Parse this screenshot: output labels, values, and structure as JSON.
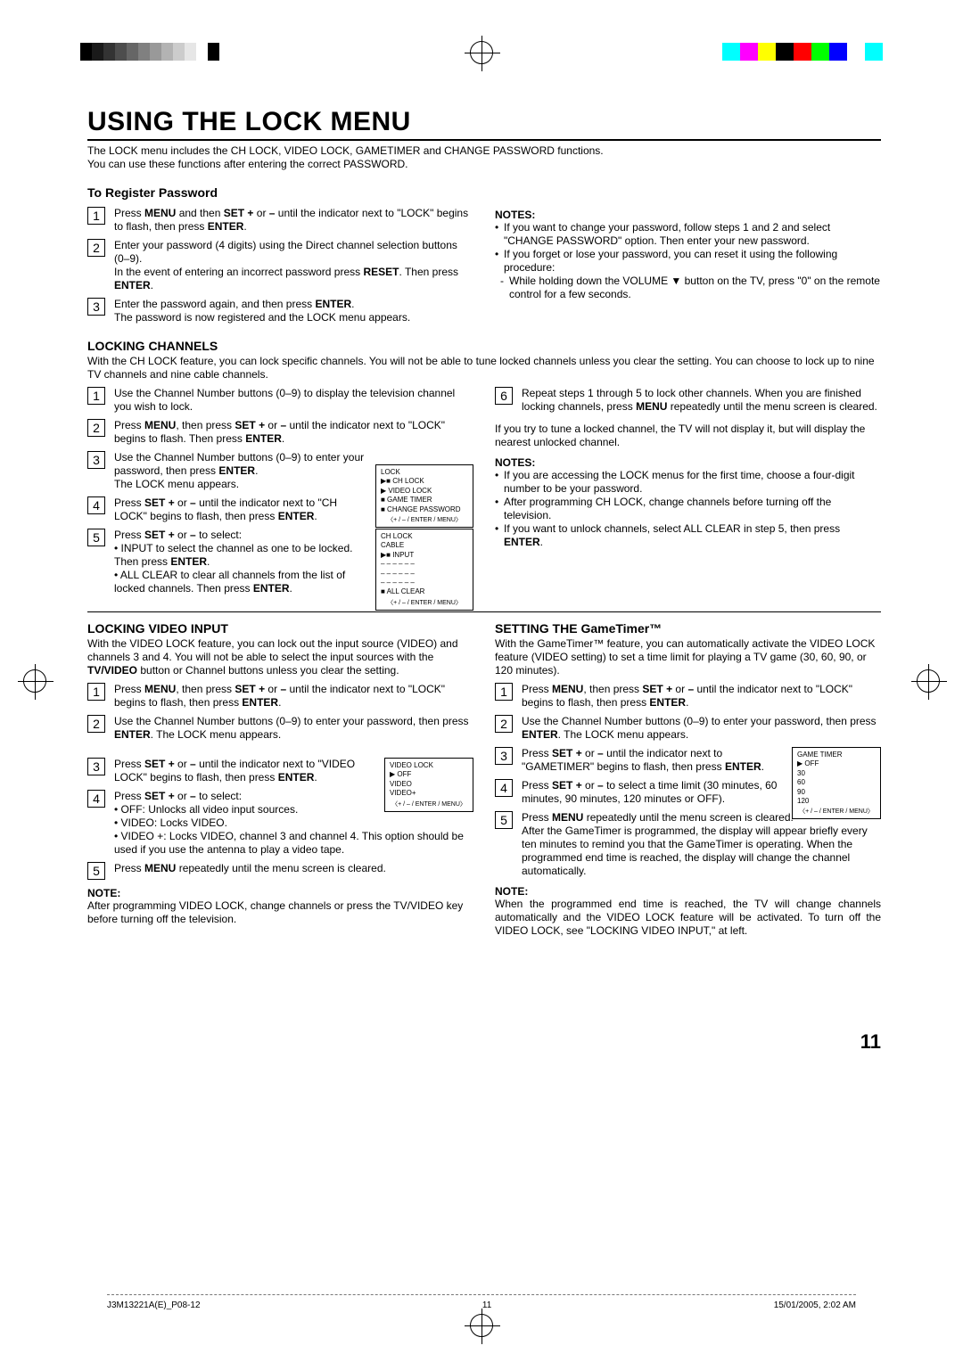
{
  "crop_colors": {
    "grays": [
      "#000000",
      "#1a1a1a",
      "#333333",
      "#4d4d4d",
      "#666666",
      "#808080",
      "#999999",
      "#b3b3b3",
      "#cccccc",
      "#e6e6e6",
      "#ffffff",
      "#000000"
    ],
    "colors": [
      "#00ffff",
      "#ff00ff",
      "#ffff00",
      "#000000",
      "#ff0000",
      "#00ff00",
      "#0000ff",
      "#ffffff",
      "#00ffff"
    ]
  },
  "title": "USING THE LOCK MENU",
  "intro1": "The LOCK menu includes the CH LOCK, VIDEO LOCK, GAMETIMER and CHANGE PASSWORD functions.",
  "intro2": "You can use these functions after entering the correct PASSWORD.",
  "register": {
    "head": "To Register Password",
    "s1a": "Press ",
    "s1b": "MENU",
    "s1c": " and then ",
    "s1d": "SET +",
    "s1e": " or ",
    "s1f": "–",
    "s1g": " until the indicator next to \"LOCK\" begins to flash, then press ",
    "s1h": "ENTER",
    "s1i": ".",
    "s2a": "Enter your password (4 digits) using the Direct channel selection buttons (0–9).",
    "s2b": "In the event of entering an incorrect password press ",
    "s2c": "RESET",
    "s2d": ". Then press ",
    "s2e": "ENTER",
    "s2f": ".",
    "s3a": "Enter the password again, and then press ",
    "s3b": "ENTER",
    "s3c": ".",
    "s3d": "The password is now registered and the LOCK menu appears.",
    "notes_head": "NOTES:",
    "n1": "If you want to change your password, follow steps 1 and 2 and select \"CHANGE PASSWORD\" option. Then enter your new password.",
    "n2": "If you forget or lose your password, you can reset it using the following procedure:",
    "n2a": "While holding down the VOLUME ▼ button on the TV, press \"0\" on the remote control for a few seconds."
  },
  "locking_channels": {
    "head": "LOCKING CHANNELS",
    "intro": "With the CH LOCK feature, you can lock specific channels. You will not be able to tune locked channels unless you clear the setting. You can choose to lock up to nine TV channels and nine cable channels.",
    "s1": "Use the Channel Number buttons (0–9) to display the television channel you wish to lock.",
    "s2a": "Press ",
    "s2b": "MENU",
    "s2c": ", then press ",
    "s2d": "SET +",
    "s2e": " or ",
    "s2f": "–",
    "s2g": "  until the indicator next to \"LOCK\" begins to flash. Then press ",
    "s2h": "ENTER",
    "s2i": ".",
    "s3a": "Use the Channel Number buttons (0–9) to enter your password, then press ",
    "s3b": "ENTER",
    "s3c": ".",
    "s3d": "The LOCK menu appears.",
    "s4a": "Press ",
    "s4b": "SET +",
    "s4c": " or ",
    "s4d": "–",
    "s4e": " until the indicator next to \"CH LOCK\"  begins to flash, then press ",
    "s4f": "ENTER",
    "s4g": ".",
    "s5a": "Press ",
    "s5b": "SET +",
    "s5c": " or ",
    "s5d": "–",
    "s5e": " to select:",
    "s5f": "• INPUT to select the channel as one to be locked. Then press  ",
    "s5g": "ENTER",
    "s5gsfx": ".",
    "s5h": "• ALL CLEAR to clear all channels from the list of locked channels. Then press ",
    "s5i": "ENTER",
    "s5isfx": ".",
    "s6a": "Repeat steps 1 through 5 to lock other channels. When you are finished locking channels, press ",
    "s6b": "MENU",
    "s6c": " repeatedly until the menu screen is cleared.",
    "after": "If you try to tune a locked channel, the TV will not display it, but will display the nearest unlocked channel.",
    "notes_head": "NOTES:",
    "n1": "If you are accessing the LOCK menus for the first time, choose a four-digit number to be your password.",
    "n2": "After programming CH LOCK, change channels before turning off the television.",
    "n3a": "If you want to unlock channels, select ALL CLEAR in step 5, then press ",
    "n3b": "ENTER",
    "n3c": ".",
    "menu1": {
      "t": "LOCK",
      "i1": "▶■ CH  LOCK",
      "i2": "   ▶ VIDEO  LOCK",
      "i3": "   ■ GAME TIMER",
      "i4": "   ■ CHANGE PASSWORD",
      "f": "〈+ / – / ENTER / MENU〉"
    },
    "menu2": {
      "t": "CH  LOCK",
      "i1": "     CABLE",
      "i2": "▶■ INPUT",
      "i3": "     – –   – –   – –",
      "i4": "     – –   – –   – –",
      "i5": "     – –   – –   – –",
      "i6": "■ ALL CLEAR",
      "f": "〈+ / – / ENTER / MENU〉"
    }
  },
  "video_lock": {
    "head": "LOCKING VIDEO INPUT",
    "intro_a": "With the VIDEO LOCK feature, you can lock out the input source (VIDEO) and channels 3 and 4. You will not be able to select the input sources with the ",
    "intro_b": "TV/VIDEO",
    "intro_c": " button or Channel buttons unless you clear the setting.",
    "s1a": "Press ",
    "s1b": "MENU",
    "s1c": ", then press ",
    "s1d": "SET +",
    "s1e": " or ",
    "s1f": "–",
    "s1g": " until the indicator next to \"LOCK\" begins to flash, then press ",
    "s1h": "ENTER",
    "s1i": ".",
    "s2a": "Use the Channel Number buttons (0–9) to enter your password, then press ",
    "s2b": "ENTER",
    "s2c": ". The LOCK menu appears.",
    "s3a": "Press ",
    "s3b": "SET +",
    "s3c": " or ",
    "s3d": "–",
    "s3e": " until the indicator next to \"VIDEO LOCK\" begins to flash, then press ",
    "s3f": "ENTER",
    "s3g": ".",
    "s4a": "Press ",
    "s4b": "SET +",
    "s4c": " or ",
    "s4d": "–",
    "s4e": " to select:",
    "s4f": "• OFF: Unlocks all video input sources.",
    "s4g": "• VIDEO: Locks VIDEO.",
    "s4h": "• VIDEO +: Locks VIDEO, channel 3 and channel 4. This option should be used if you use the antenna to play a video tape.",
    "s5a": "Press ",
    "s5b": "MENU",
    "s5c": " repeatedly until the menu screen is cleared.",
    "note_head": "NOTE:",
    "note": "After programming VIDEO LOCK, change channels or press the TV/VIDEO key before turning off the television.",
    "menu": {
      "t": "VIDEO  LOCK",
      "i1": "   ▶ OFF",
      "i2": "     VIDEO",
      "i3": "     VIDEO+",
      "f": "〈+ / – / ENTER / MENU〉"
    }
  },
  "gametimer": {
    "head": "SETTING THE GameTimer™",
    "intro": "With the GameTimer™ feature, you can automatically activate the VIDEO LOCK feature (VIDEO setting) to set a time limit for playing a TV game (30, 60, 90, or 120  minutes).",
    "s1a": "Press ",
    "s1b": "MENU",
    "s1c": ", then press ",
    "s1d": "SET +",
    "s1e": " or ",
    "s1f": "–",
    "s1g": " until the indicator next to \"LOCK\" begins to flash, then press ",
    "s1h": "ENTER",
    "s1i": ".",
    "s2a": "Use the Channel Number buttons (0–9) to enter your password, then press ",
    "s2b": "ENTER",
    "s2c": ". The LOCK menu appears.",
    "s3a": "Press ",
    "s3b": "SET +",
    "s3c": "  or  ",
    "s3d": "–",
    "s3e": " until the indicator next to \"GAMETIMER\" begins to flash, then press ",
    "s3f": "ENTER",
    "s3g": ".",
    "s4a": "Press ",
    "s4b": "SET +",
    "s4c": " or ",
    "s4d": "–",
    "s4e": " to select a time limit (30 minutes, 60 minutes, 90 minutes, 120 minutes or OFF).",
    "s5a": "Press ",
    "s5b": "MENU",
    "s5c": " repeatedly until the menu screen is cleared.",
    "s5d": "After the GameTimer is programmed, the display will appear briefly every ten minutes to remind you that the GameTimer is operating.  When the programmed end time is reached, the display will change the channel automatically.",
    "note_head": "NOTE:",
    "note": "When the programmed end time is reached, the TV will change channels automatically and the VIDEO LOCK feature will be activated. To turn off the VIDEO LOCK, see \"LOCKING VIDEO INPUT,\" at left.",
    "menu": {
      "t": "GAME  TIMER",
      "i1": "   ▶ OFF",
      "i2": "     30",
      "i3": "     60",
      "i4": "     90",
      "i5": "     120",
      "f": "〈+ / – / ENTER / MENU〉"
    }
  },
  "page_number": "11",
  "footer": {
    "left": "J3M13221A(E)_P08-12",
    "mid": "11",
    "right": "15/01/2005, 2:02 AM"
  }
}
